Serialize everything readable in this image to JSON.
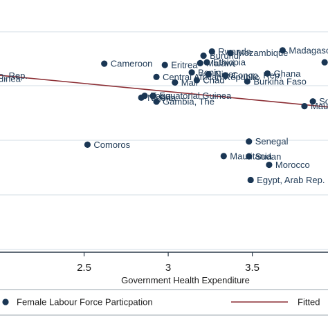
{
  "chart_data": {
    "type": "scatter",
    "xlabel": "Government Health Expenditure",
    "ylabel": "",
    "title": "",
    "xlim": [
      2.0,
      3.95
    ],
    "ylim": [
      10,
      93
    ],
    "xticks": [
      2.5,
      3,
      3.5
    ],
    "xtick_labels": [
      "2.5",
      "3",
      "3.5"
    ],
    "grid": true,
    "legend_position": "bottom",
    "colors": {
      "points": "#1a3654",
      "fit": "#8c2f35",
      "grid": "#dce4ea",
      "frame": "#2b3a4a"
    },
    "series": [
      {
        "name": "Female Labour Force Particpation",
        "kind": "scatter",
        "points": [
          {
            "label": "Madagascar",
            "x": 3.68,
            "y": 86
          },
          {
            "label": "Rwanda",
            "x": 3.26,
            "y": 85.6
          },
          {
            "label": "Mozambique",
            "x": 3.37,
            "y": 85
          },
          {
            "label": "Burundi",
            "x": 3.21,
            "y": 84
          },
          {
            "label": "Cameroon",
            "x": 2.62,
            "y": 81
          },
          {
            "label": "Eritrea",
            "x": 2.98,
            "y": 80.5
          },
          {
            "label": "Malawi",
            "x": 3.19,
            "y": 81.2
          },
          {
            "label": "Ethiopia",
            "x": 3.23,
            "y": 81.5
          },
          {
            "label": "Benin",
            "x": 3.14,
            "y": 77.7
          },
          {
            "label": "Niger",
            "x": 3.24,
            "y": 77
          },
          {
            "label": "Congo, Rep.",
            "x": 3.34,
            "y": 76.6
          },
          {
            "label": "Ghana",
            "x": 3.59,
            "y": 77.3
          },
          {
            "label": "Central African Republic",
            "x": 2.93,
            "y": 76
          },
          {
            "label": "Chad",
            "x": 3.17,
            "y": 74.8
          },
          {
            "label": "Mali",
            "x": 3.04,
            "y": 73.9
          },
          {
            "label": "Burkina Faso",
            "x": 3.47,
            "y": 74.3
          },
          {
            "label": "Togo",
            "x": 2.86,
            "y": 68.9
          },
          {
            "label": "Equatorial Guinea",
            "x": 2.91,
            "y": 68.9
          },
          {
            "label": "Nigeria",
            "x": 2.84,
            "y": 68.2
          },
          {
            "label": "Gambia, The",
            "x": 2.93,
            "y": 66.7
          },
          {
            "label": "Comoros",
            "x": 2.52,
            "y": 50.5
          },
          {
            "label": "Senegal",
            "x": 3.48,
            "y": 51.7
          },
          {
            "label": "Mauritania",
            "x": 3.33,
            "y": 46.2
          },
          {
            "label": "Sudan",
            "x": 3.48,
            "y": 46.1
          },
          {
            "label": "Morocco",
            "x": 3.6,
            "y": 42.9
          },
          {
            "label": "Egypt, Arab Rep.",
            "x": 3.49,
            "y": 37.2
          },
          {
            "label": "Sou",
            "x": 3.86,
            "y": 66.8
          },
          {
            "label": "Mau",
            "x": 3.81,
            "y": 65
          },
          {
            "label": "",
            "x": 3.93,
            "y": 81.5
          }
        ]
      },
      {
        "name": "Fitted",
        "kind": "line",
        "x": [
          2.0,
          3.95
        ],
        "y": [
          76.6,
          64.7
        ]
      }
    ],
    "left_labels": [
      {
        "text": "o, Rep.",
        "y": 76.5
      },
      {
        "text": "uinea",
        "y": 75.3
      }
    ]
  }
}
